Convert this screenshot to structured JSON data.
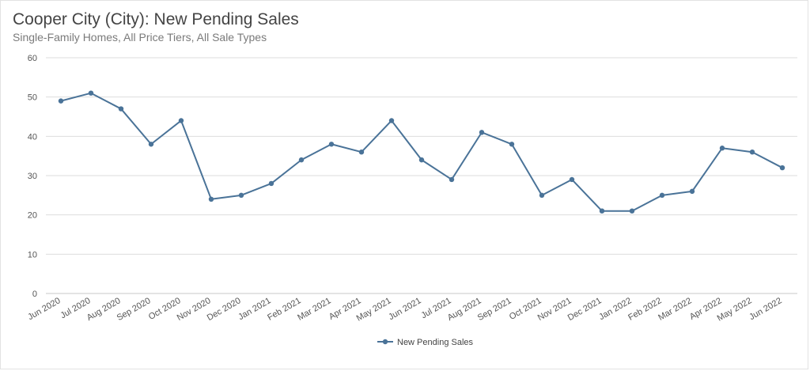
{
  "chart_data": {
    "type": "line",
    "title": "Cooper City (City): New Pending Sales",
    "subtitle": "Single-Family Homes, All Price Tiers, All Sale Types",
    "categories": [
      "Jun 2020",
      "Jul 2020",
      "Aug 2020",
      "Sep 2020",
      "Oct 2020",
      "Nov 2020",
      "Dec 2020",
      "Jan 2021",
      "Feb 2021",
      "Mar 2021",
      "Apr 2021",
      "May 2021",
      "Jun 2021",
      "Jul 2021",
      "Aug 2021",
      "Sep 2021",
      "Oct 2021",
      "Nov 2021",
      "Dec 2021",
      "Jan 2022",
      "Feb 2022",
      "Mar 2022",
      "Apr 2022",
      "May 2022",
      "Jun 2022"
    ],
    "series": [
      {
        "name": "New Pending Sales",
        "values": [
          49,
          51,
          47,
          38,
          44,
          24,
          25,
          28,
          34,
          38,
          36,
          44,
          34,
          29,
          41,
          38,
          25,
          29,
          21,
          21,
          25,
          26,
          37,
          36,
          32
        ]
      }
    ],
    "ylim": [
      0,
      60
    ],
    "yticks": [
      0,
      10,
      20,
      30,
      40,
      50,
      60
    ],
    "grid": true,
    "legend_position": "bottom-center",
    "color": "#4a7398",
    "grid_color": "#dddddd"
  }
}
